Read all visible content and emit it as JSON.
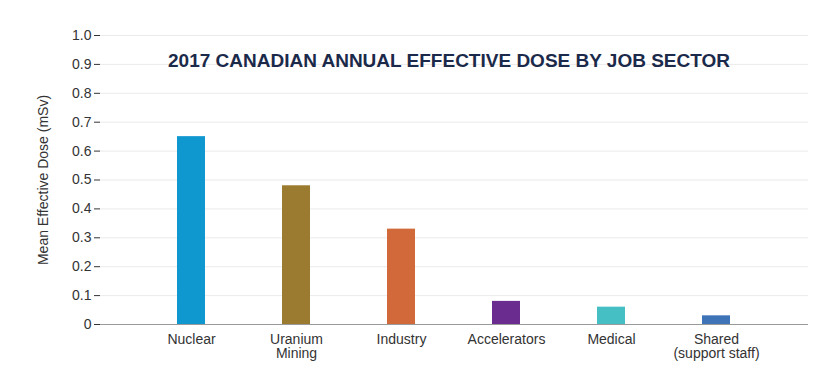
{
  "chart_data": {
    "type": "bar",
    "title": "2017 CANADIAN ANNUAL EFFECTIVE DOSE BY JOB SECTOR",
    "y_label": "Mean Effective Dose (mSv)",
    "categories": [
      "Nuclear",
      "Uranium\nMining",
      "Industry",
      "Accelerators",
      "Medical",
      "Shared\n(support staff)"
    ],
    "values": [
      0.65,
      0.48,
      0.33,
      0.08,
      0.06,
      0.03
    ],
    "colors": [
      "#0f97cf",
      "#9b7b2f",
      "#d2693a",
      "#6a2c8f",
      "#45bfc4",
      "#3e73b8"
    ],
    "ylim": [
      0,
      1
    ],
    "yticks": [
      0,
      0.1,
      0.2,
      0.3,
      0.4,
      0.5,
      0.6,
      0.7,
      0.8,
      0.9,
      {
        "value": 1,
        "label": "1.0"
      }
    ],
    "grid": true
  }
}
